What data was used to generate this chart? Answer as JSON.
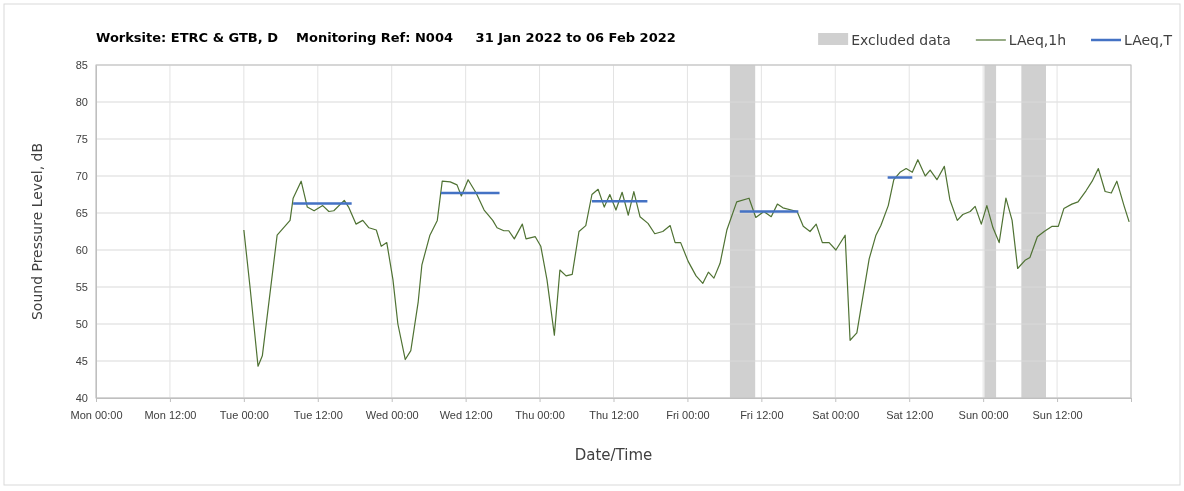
{
  "chart_data": {
    "type": "line",
    "title": "Worksite: ETRC & GTB, D    Monitoring Ref: N004     31 Jan 2022 to 06 Feb 2022",
    "xlabel": "Date/Time",
    "ylabel": "Sound Pressure Level, dB",
    "xlim": [
      "2022-01-31T00:00",
      "2022-02-07T00:00"
    ],
    "xticks": [
      {
        "value": "2022-01-31T00:00",
        "label": "Mon 00:00"
      },
      {
        "value": "2022-01-31T12:00",
        "label": "Mon 12:00"
      },
      {
        "value": "2022-02-01T00:00",
        "label": "Tue 00:00"
      },
      {
        "value": "2022-02-01T12:00",
        "label": "Tue 12:00"
      },
      {
        "value": "2022-02-02T00:00",
        "label": "Wed 00:00"
      },
      {
        "value": "2022-02-02T12:00",
        "label": "Wed 12:00"
      },
      {
        "value": "2022-02-03T00:00",
        "label": "Thu 00:00"
      },
      {
        "value": "2022-02-03T12:00",
        "label": "Thu 12:00"
      },
      {
        "value": "2022-02-04T00:00",
        "label": "Fri 00:00"
      },
      {
        "value": "2022-02-04T12:00",
        "label": "Fri 12:00"
      },
      {
        "value": "2022-02-05T00:00",
        "label": "Sat 00:00"
      },
      {
        "value": "2022-02-05T12:00",
        "label": "Sat 12:00"
      },
      {
        "value": "2022-02-06T00:00",
        "label": "Sun 00:00"
      },
      {
        "value": "2022-02-06T12:00",
        "label": "Sun 12:00"
      },
      {
        "value": "2022-02-07T00:00",
        "label": null
      }
    ],
    "ylim": [
      40,
      85
    ],
    "yticks": [
      40,
      45,
      50,
      55,
      60,
      65,
      70,
      75,
      80,
      85
    ],
    "grid": true,
    "legend": "top right",
    "marker": "none",
    "line_style": "solid",
    "bands": [
      {
        "axis": "x",
        "from": "2022-02-04T06:54",
        "to": "2022-02-04T11:00",
        "label": "Excluded data",
        "color": "#d0d0d0"
      },
      {
        "axis": "x",
        "from": "2022-02-06T00:12",
        "to": "2022-02-06T02:06",
        "color": "#d0d0d0"
      },
      {
        "axis": "x",
        "from": "2022-02-06T06:12",
        "to": "2022-02-06T10:12",
        "color": "#d0d0d0"
      }
    ],
    "series": [
      {
        "name": "LAeq,1h",
        "color": "#4f7233",
        "x": [
          "2022-02-01T00:00",
          "2022-02-01T01:00",
          "2022-02-01T02:18",
          "2022-02-01T03:00",
          "2022-02-01T05:24",
          "2022-02-01T07:30",
          "2022-02-01T08:00",
          "2022-02-01T09:18",
          "2022-02-01T10:18",
          "2022-02-01T11:24",
          "2022-02-01T12:48",
          "2022-02-01T13:48",
          "2022-02-01T14:36",
          "2022-02-01T16:18",
          "2022-02-01T17:00",
          "2022-02-01T18:12",
          "2022-02-01T19:18",
          "2022-02-01T20:18",
          "2022-02-01T21:30",
          "2022-02-01T22:18",
          "2022-02-01T23:12",
          "2022-02-02T00:12",
          "2022-02-02T01:00",
          "2022-02-02T02:12",
          "2022-02-02T03:06",
          "2022-02-02T04:18",
          "2022-02-02T04:54",
          "2022-02-02T06:12",
          "2022-02-02T07:24",
          "2022-02-02T08:12",
          "2022-02-02T09:30",
          "2022-02-02T10:36",
          "2022-02-02T11:18",
          "2022-02-02T12:24",
          "2022-02-02T13:42",
          "2022-02-02T15:00",
          "2022-02-02T16:24",
          "2022-02-02T17:06",
          "2022-02-02T18:12",
          "2022-02-02T19:00",
          "2022-02-02T19:54",
          "2022-02-02T21:12",
          "2022-02-02T21:48",
          "2022-02-02T23:18",
          "2022-02-03T00:12",
          "2022-02-03T01:12",
          "2022-02-03T02:24",
          "2022-02-03T03:18",
          "2022-02-03T04:18",
          "2022-02-03T05:18",
          "2022-02-03T06:24",
          "2022-02-03T07:30",
          "2022-02-03T08:30",
          "2022-02-03T09:30",
          "2022-02-03T10:30",
          "2022-02-03T11:24",
          "2022-02-03T12:24",
          "2022-02-03T13:24",
          "2022-02-03T14:24",
          "2022-02-03T15:18",
          "2022-02-03T16:18",
          "2022-02-03T17:36",
          "2022-02-03T18:42",
          "2022-02-03T20:00",
          "2022-02-03T21:12",
          "2022-02-03T22:00",
          "2022-02-03T22:54",
          "2022-02-04T00:06",
          "2022-02-04T01:24",
          "2022-02-04T02:30",
          "2022-02-04T03:24",
          "2022-02-04T04:18",
          "2022-02-04T05:18",
          "2022-02-04T06:24",
          "2022-02-04T08:00",
          "2022-02-04T10:00",
          "2022-02-04T11:06",
          "2022-02-04T12:24",
          "2022-02-04T13:36",
          "2022-02-04T14:36",
          "2022-02-04T15:30",
          "2022-02-04T17:48",
          "2022-02-04T18:48",
          "2022-02-04T19:54",
          "2022-02-04T20:54",
          "2022-02-04T21:54",
          "2022-02-04T23:00",
          "2022-02-05T00:06",
          "2022-02-05T01:36",
          "2022-02-05T02:24",
          "2022-02-05T03:30",
          "2022-02-05T05:30",
          "2022-02-05T06:36",
          "2022-02-05T07:24",
          "2022-02-05T08:36",
          "2022-02-05T09:30",
          "2022-02-05T10:30",
          "2022-02-05T11:30",
          "2022-02-05T12:30",
          "2022-02-05T13:24",
          "2022-02-05T14:36",
          "2022-02-05T15:24",
          "2022-02-05T16:30",
          "2022-02-05T17:42",
          "2022-02-05T18:36",
          "2022-02-05T19:48",
          "2022-02-05T20:42",
          "2022-02-05T21:54",
          "2022-02-05T22:42",
          "2022-02-05T23:42",
          "2022-02-06T00:36",
          "2022-02-06T01:36",
          "2022-02-06T02:36",
          "2022-02-06T03:42",
          "2022-02-06T04:42",
          "2022-02-06T05:36",
          "2022-02-06T06:48",
          "2022-02-06T07:36",
          "2022-02-06T08:48",
          "2022-02-06T09:54",
          "2022-02-06T11:12",
          "2022-02-06T12:12",
          "2022-02-06T13:06",
          "2022-02-06T14:24",
          "2022-02-06T15:24",
          "2022-02-06T16:42",
          "2022-02-06T17:42",
          "2022-02-06T18:42",
          "2022-02-06T19:48",
          "2022-02-06T20:48",
          "2022-02-06T21:42",
          "2022-02-06T22:54",
          "2022-02-06T23:42"
        ],
        "values": [
          62.7,
          55,
          44.3,
          45.7,
          62,
          64,
          67,
          69.3,
          65.8,
          65.3,
          66,
          65.2,
          65.3,
          66.7,
          65.8,
          63.5,
          64,
          63,
          62.7,
          60.5,
          61,
          56,
          50,
          45.2,
          46.4,
          53,
          58,
          62,
          64,
          69.3,
          69.2,
          68.8,
          67.3,
          69.5,
          67.7,
          65.4,
          64,
          63,
          62.6,
          62.6,
          61.5,
          63.5,
          61.5,
          61.8,
          60.5,
          56,
          48.5,
          57.3,
          56.5,
          56.7,
          62.5,
          63.3,
          67.5,
          68.2,
          65.8,
          67.5,
          65.4,
          67.8,
          64.7,
          67.9,
          64.5,
          63.6,
          62.2,
          62.5,
          63.3,
          61,
          61,
          58.5,
          56.5,
          55.5,
          57,
          56.2,
          58.2,
          62.7,
          66.5,
          67,
          64.4,
          65.2,
          64.5,
          66.2,
          65.7,
          65.2,
          63.2,
          62.5,
          63.5,
          61,
          61,
          60,
          62,
          47.8,
          48.8,
          58.8,
          62,
          63.3,
          66,
          69.5,
          70.5,
          71,
          70.5,
          72.2,
          70,
          70.8,
          69.5,
          71.3,
          66.8,
          64,
          64.8,
          65.2,
          65.9,
          63.5,
          66,
          63,
          61,
          67,
          64,
          57.5,
          58.6,
          59,
          61.8,
          62.5,
          63.2,
          63.2,
          65.6,
          66.2,
          66.5,
          68,
          69.3,
          71,
          67.9,
          67.7,
          69.3,
          65.9,
          63.8
        ]
      },
      {
        "name": "LAeq,T",
        "color": "#4472c4",
        "x": [
          "2022-02-01T08:00",
          "2022-02-01T17:30",
          "2022-02-02T00:00",
          "2022-02-02T08:00",
          "2022-02-02T17:30",
          "2022-02-03T00:00",
          "2022-02-03T08:30",
          "2022-02-03T17:30",
          "2022-02-04T00:00",
          "2022-02-04T08:30",
          "2022-02-04T18:00",
          "2022-02-05T00:00",
          "2022-02-05T08:30",
          "2022-02-05T12:30"
        ],
        "values": [
          66.3,
          66.3,
          null,
          67.7,
          67.7,
          null,
          66.6,
          66.6,
          null,
          65.2,
          65.2,
          null,
          69.8,
          69.8
        ]
      }
    ]
  }
}
